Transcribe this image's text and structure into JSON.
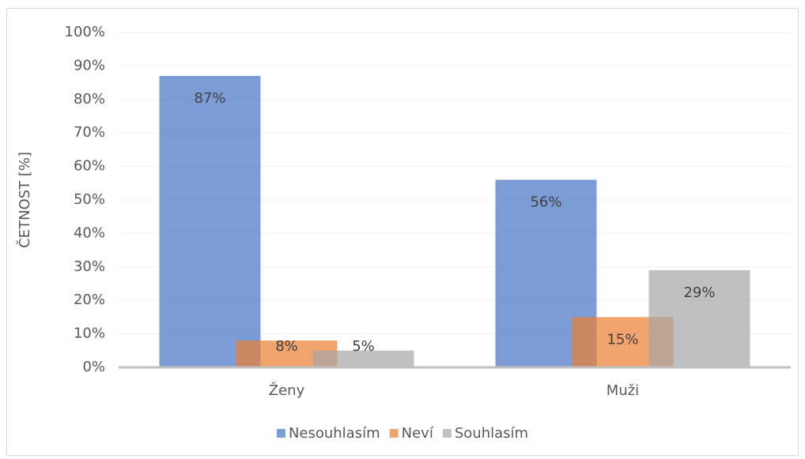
{
  "chart_data": {
    "type": "bar",
    "y_label": "ČETNOST [%]",
    "categories": [
      "Ženy",
      "Muži"
    ],
    "series": [
      {
        "name": "Nesouhlasím",
        "color": "#4472c4",
        "values": [
          87,
          56
        ],
        "value_labels": [
          "87%",
          "56%"
        ]
      },
      {
        "name": "Neví",
        "color": "#ed7d31",
        "values": [
          8,
          15
        ],
        "value_labels": [
          "8%",
          "15%"
        ]
      },
      {
        "name": "Souhlasím",
        "color": "#a5a5a5",
        "values": [
          5,
          29
        ],
        "value_labels": [
          "5%",
          "29%"
        ]
      }
    ],
    "ylim": [
      0,
      100
    ],
    "yticks": [
      {
        "value": 0,
        "label": "0%"
      },
      {
        "value": 10,
        "label": "10%"
      },
      {
        "value": 20,
        "label": "20%"
      },
      {
        "value": 30,
        "label": "30%"
      },
      {
        "value": 40,
        "label": "40%"
      },
      {
        "value": 50,
        "label": "50%"
      },
      {
        "value": 60,
        "label": "60%"
      },
      {
        "value": 70,
        "label": "70%"
      },
      {
        "value": 80,
        "label": "80%"
      },
      {
        "value": 90,
        "label": "90%"
      },
      {
        "value": 100,
        "label": "100%"
      }
    ],
    "grid": true,
    "legend": "bottom"
  }
}
